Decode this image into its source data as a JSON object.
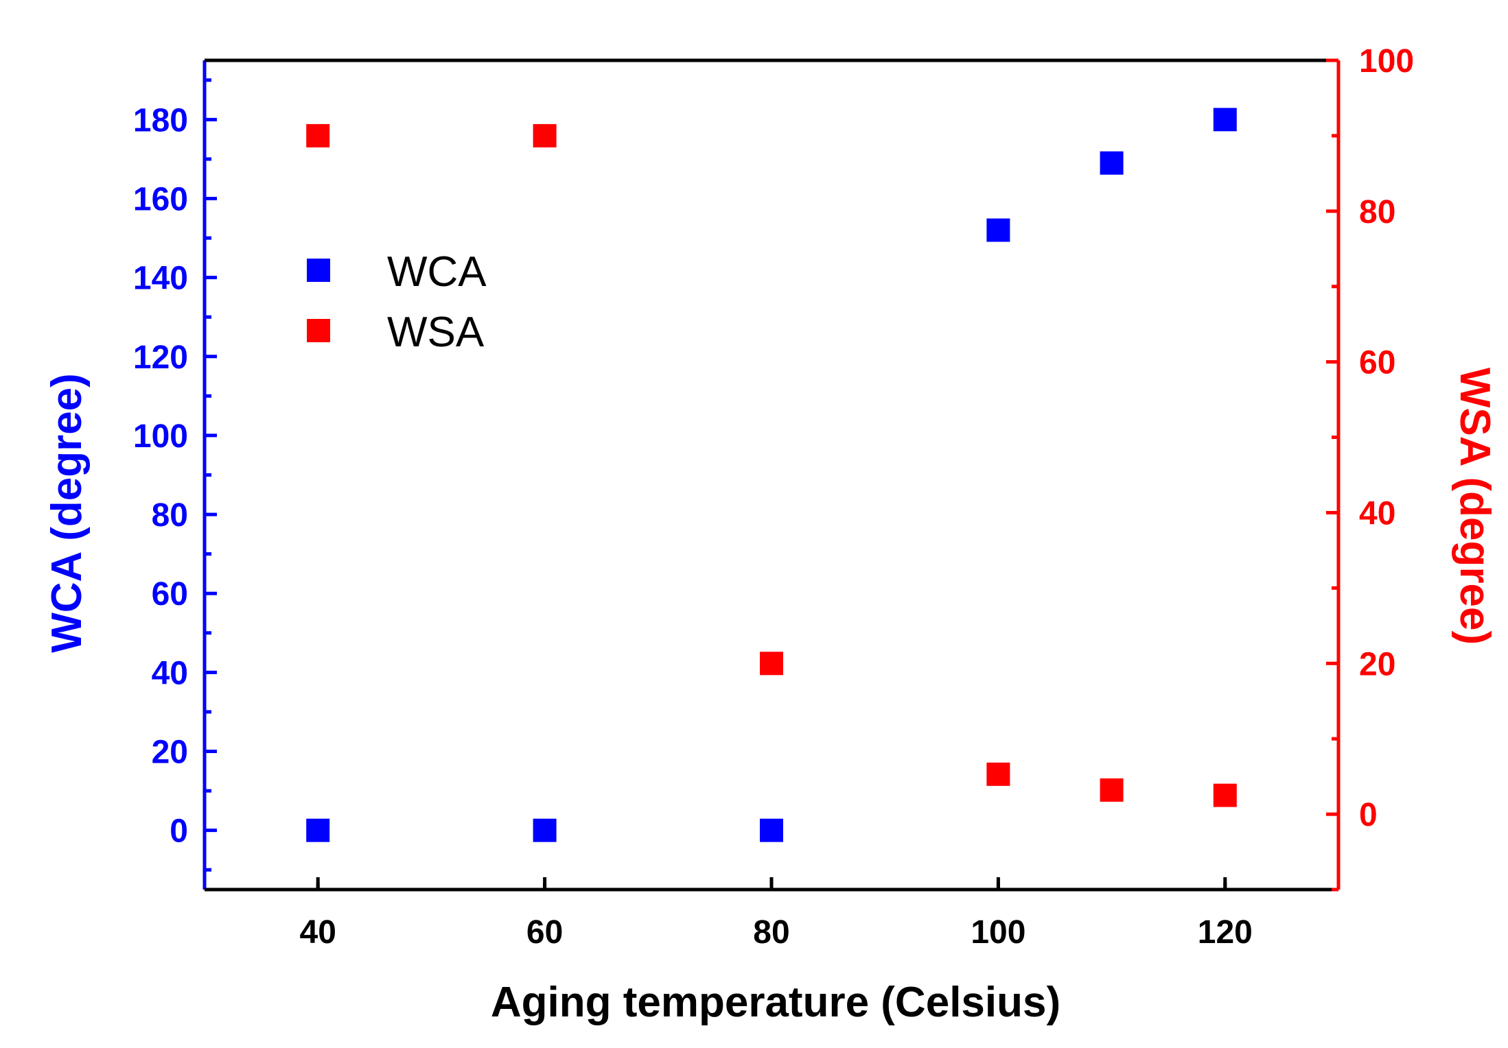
{
  "chart_data": {
    "type": "scatter",
    "title": "",
    "xlabel": "Aging temperature (Celsius)",
    "ylabel_left": "WCA (degree)",
    "ylabel_right": "WSA (degree)",
    "xlim": [
      30,
      130
    ],
    "ylim_left": [
      -15,
      195
    ],
    "ylim_right": [
      -10,
      100
    ],
    "x_ticks": [
      40,
      60,
      80,
      100,
      120
    ],
    "y_left_ticks": [
      0,
      20,
      40,
      60,
      80,
      100,
      120,
      140,
      160,
      180
    ],
    "y_right_ticks": [
      0,
      20,
      40,
      60,
      80,
      100
    ],
    "grid": false,
    "legend_position": "upper-left",
    "series": [
      {
        "name": "WCA",
        "axis": "left",
        "color": "#0000ff",
        "marker": "square",
        "x": [
          40,
          60,
          80,
          100,
          110,
          120
        ],
        "y": [
          0,
          0,
          0,
          152,
          169,
          180
        ]
      },
      {
        "name": "WSA",
        "axis": "right",
        "color": "#ff0000",
        "marker": "square",
        "x": [
          40,
          60,
          80,
          100,
          110,
          120
        ],
        "y": [
          90,
          90,
          20,
          5.3,
          3.2,
          2.5
        ]
      }
    ],
    "colors": {
      "left_axis": "#0000ff",
      "right_axis": "#ff0000",
      "bottom_axis": "#000000"
    }
  }
}
